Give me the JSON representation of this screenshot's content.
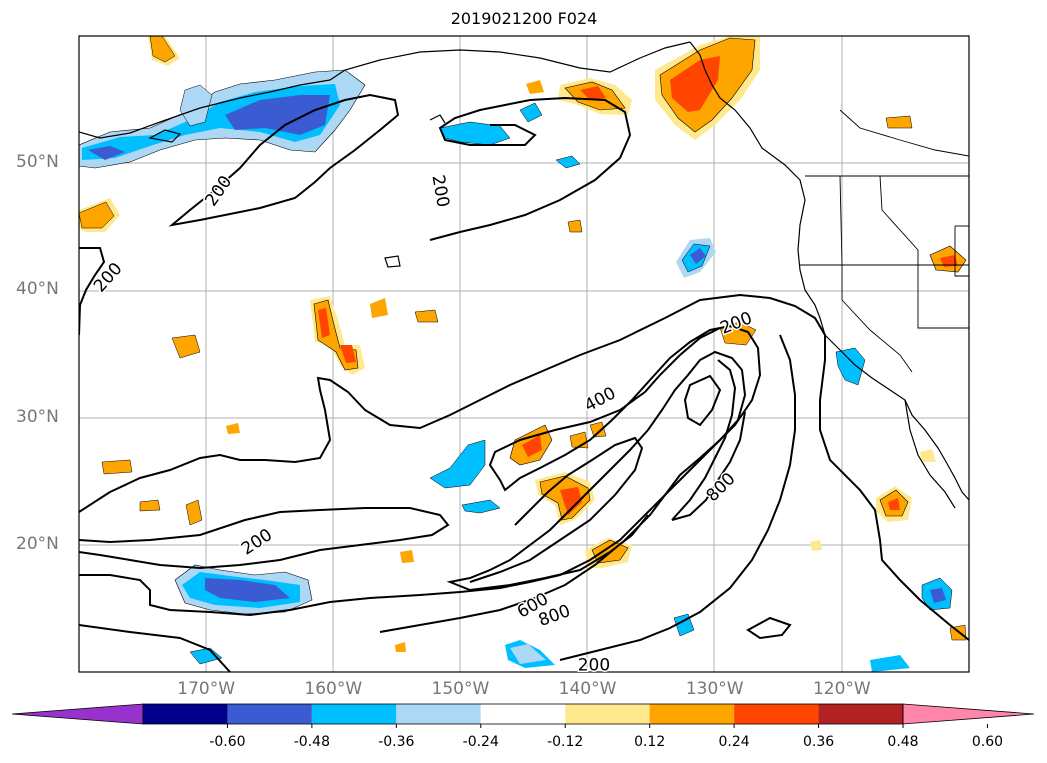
{
  "title": "2019021200 F024",
  "lat_labels": [
    {
      "text": "50°N",
      "lat": 50
    },
    {
      "text": "40°N",
      "lat": 40
    },
    {
      "text": "30°N",
      "lat": 30
    },
    {
      "text": "20°N",
      "lat": 20
    }
  ],
  "lon_labels": [
    {
      "text": "170°W",
      "lon": -170
    },
    {
      "text": "160°W",
      "lon": -160
    },
    {
      "text": "150°W",
      "lon": -150
    },
    {
      "text": "140°W",
      "lon": -140
    },
    {
      "text": "130°W",
      "lon": -130
    },
    {
      "text": "120°W",
      "lon": -120
    }
  ],
  "contour_labels": [
    {
      "text": "200",
      "lon": -169,
      "lat": 47.8,
      "rot": -55
    },
    {
      "text": "200",
      "lon": -151.6,
      "lat": 47.8,
      "rot": 80
    },
    {
      "text": "200",
      "lon": -177.7,
      "lat": 41,
      "rot": -48
    },
    {
      "text": "200",
      "lon": -128.3,
      "lat": 37.4,
      "rot": -22
    },
    {
      "text": "200",
      "lon": -166,
      "lat": 20.2,
      "rot": -33
    },
    {
      "text": "200",
      "lon": -139.5,
      "lat": 10.5,
      "rot": 0
    },
    {
      "text": "400",
      "lon": -139,
      "lat": 31.4,
      "rot": -28
    },
    {
      "text": "600",
      "lon": -144.3,
      "lat": 15.2,
      "rot": -30
    },
    {
      "text": "800",
      "lon": -142.6,
      "lat": 14.4,
      "rot": -20
    },
    {
      "text": "800",
      "lon": -129.5,
      "lat": 24.5,
      "rot": -45
    }
  ],
  "colorbar": {
    "ticks": [
      "-0.60",
      "-0.48",
      "-0.36",
      "-0.24",
      "-0.12",
      "0.12",
      "0.24",
      "0.36",
      "0.48",
      "0.60"
    ],
    "colors": [
      "#9932CC",
      "#00008B",
      "#3A5BD1",
      "#00BFFF",
      "#ADD8F5",
      "#FFFFFF",
      "#FFE98C",
      "#FFA500",
      "#FF4500",
      "#B22222",
      "#FF85AA"
    ]
  }
}
